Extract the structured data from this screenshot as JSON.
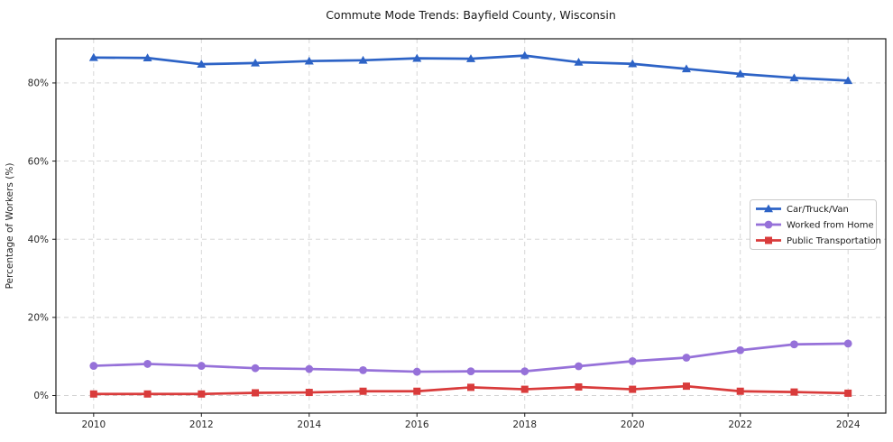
{
  "chart_data": {
    "type": "line",
    "title": "Commute Mode Trends: Bayfield County, Wisconsin",
    "xlabel": "",
    "ylabel": "Percentage of Workers (%)",
    "x": [
      2010,
      2011,
      2012,
      2013,
      2014,
      2015,
      2016,
      2017,
      2018,
      2019,
      2020,
      2021,
      2022,
      2023,
      2024
    ],
    "xticks": [
      2010,
      2012,
      2014,
      2016,
      2018,
      2020,
      2022,
      2024
    ],
    "yticks": [
      0,
      20,
      40,
      60,
      80
    ],
    "ytick_suffix": "%",
    "xlim": [
      2009.3,
      2024.7
    ],
    "ylim": [
      -4.5,
      91.3
    ],
    "grid": true,
    "grid_style": "dashed",
    "legend_position": "center-right",
    "series": [
      {
        "name": "Car/Truck/Van",
        "marker": "triangle",
        "color": "#2d63c6",
        "values": [
          86.5,
          86.4,
          84.8,
          85.1,
          85.6,
          85.8,
          86.3,
          86.2,
          87.0,
          85.3,
          84.9,
          83.6,
          82.3,
          81.3,
          80.6
        ]
      },
      {
        "name": "Worked from Home",
        "marker": "circle",
        "color": "#9671d9",
        "values": [
          7.6,
          8.1,
          7.6,
          7.0,
          6.8,
          6.5,
          6.1,
          6.2,
          6.2,
          7.5,
          8.8,
          9.7,
          11.6,
          13.1,
          13.3
        ]
      },
      {
        "name": "Public Transportation",
        "marker": "square",
        "color": "#d93b3b",
        "values": [
          0.4,
          0.4,
          0.4,
          0.7,
          0.8,
          1.1,
          1.1,
          2.1,
          1.6,
          2.2,
          1.6,
          2.4,
          1.1,
          0.9,
          0.6
        ]
      }
    ],
    "colors": {
      "grid": "#d2d2d2",
      "spine": "#1a1a1a",
      "tick_label": "#262626",
      "legend_border": "#c9c9c9",
      "legend_bg": "#ffffff"
    }
  }
}
